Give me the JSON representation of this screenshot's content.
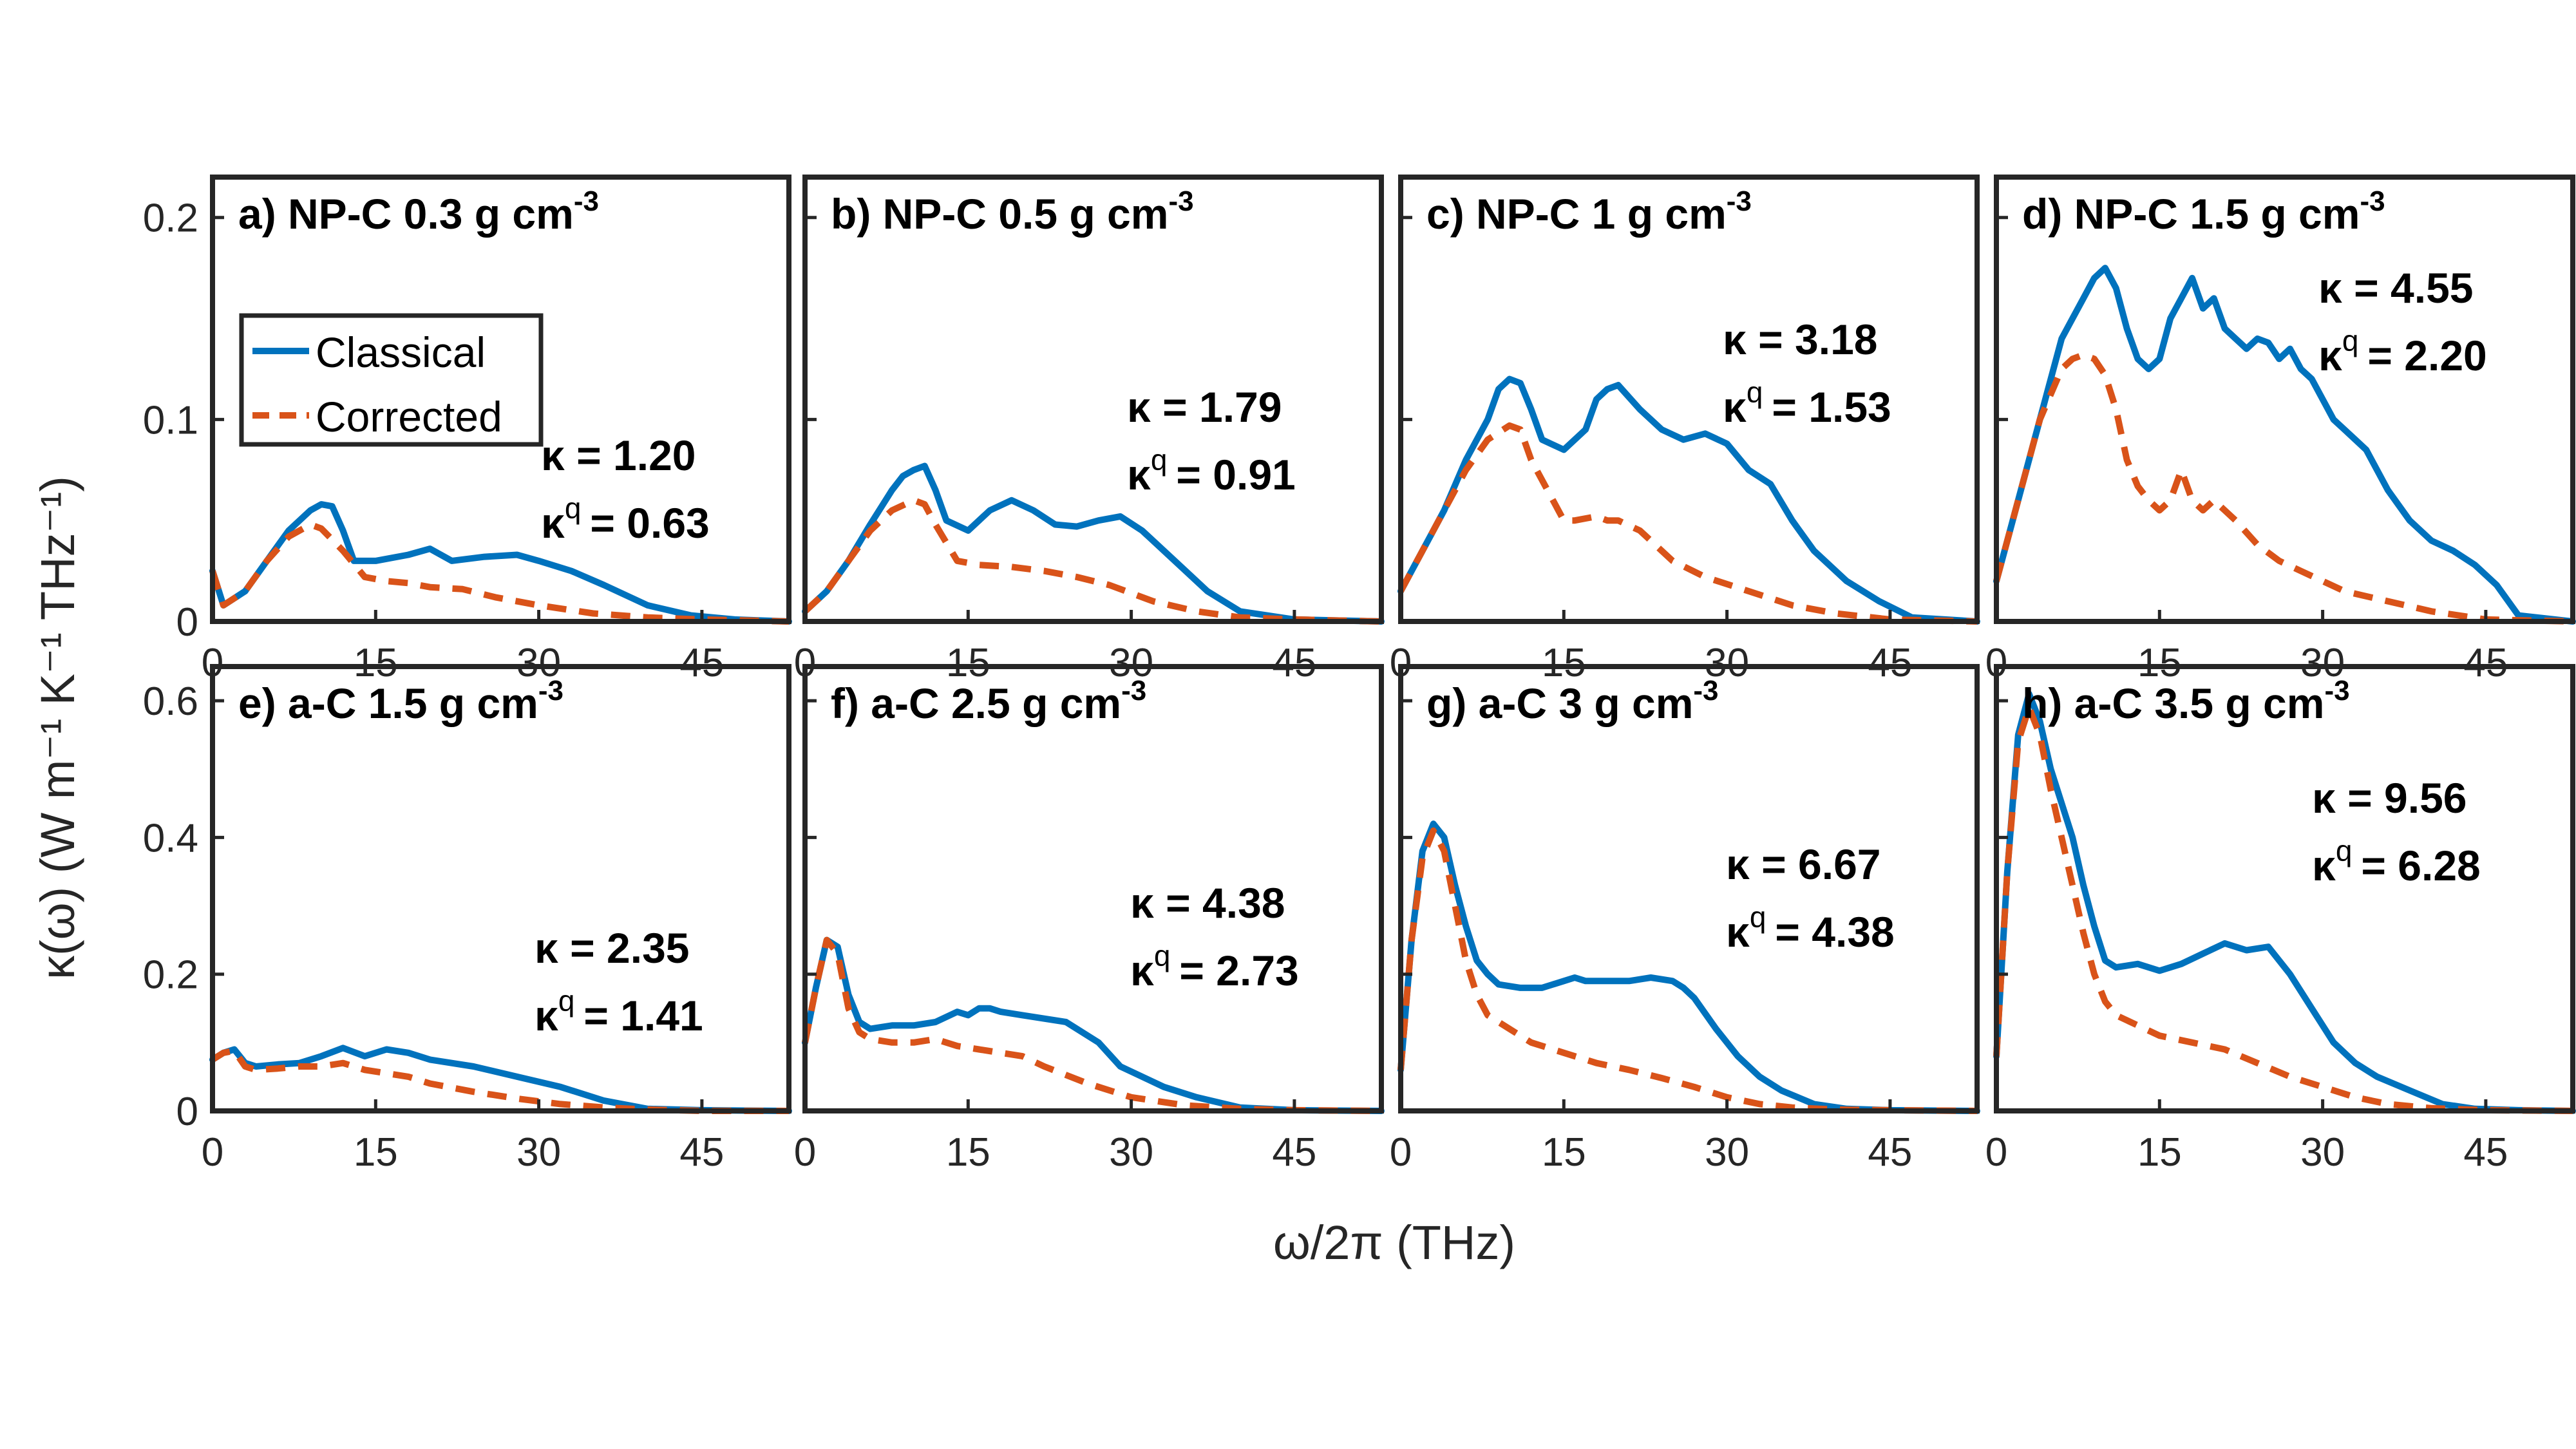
{
  "figure": {
    "ylabel": "κ(ω) (W m⁻¹ K⁻¹ THz⁻¹)",
    "xlabel": "ω/2π (THz)"
  },
  "legend": {
    "items": [
      {
        "label": "Classical",
        "color": "#0072BD",
        "style": "solid"
      },
      {
        "label": "Corrected",
        "color": "#D95319",
        "style": "dashed"
      }
    ],
    "placement": "panel a, upper-left"
  },
  "chart_data": [
    {
      "type": "line",
      "panel": "a",
      "label": "a) NP-C 0.3 g cm",
      "exponent": "-3",
      "kappa_label": "κ = 1.20",
      "kappaq_label": "κ",
      "kappaq_sup": "q",
      "kappaq_value": "= 0.63",
      "xlim": [
        0,
        53
      ],
      "ylim": [
        0,
        0.22
      ],
      "xticks": [
        "0",
        "15",
        "30",
        "45"
      ],
      "yticks": [
        "0",
        "0.1",
        "0.2"
      ],
      "ytick_values": [
        0,
        0.1,
        0.2
      ],
      "series": [
        {
          "name": "Classical",
          "x": [
            0,
            1,
            3,
            5,
            7,
            9,
            10,
            11,
            12,
            13,
            15,
            18,
            20,
            22,
            25,
            28,
            30,
            33,
            36,
            40,
            44,
            48,
            53
          ],
          "y": [
            0.025,
            0.008,
            0.015,
            0.03,
            0.045,
            0.055,
            0.058,
            0.057,
            0.045,
            0.03,
            0.03,
            0.033,
            0.036,
            0.03,
            0.032,
            0.033,
            0.03,
            0.025,
            0.018,
            0.008,
            0.003,
            0.001,
            0
          ]
        },
        {
          "name": "Corrected",
          "x": [
            0,
            1,
            3,
            5,
            7,
            9,
            10,
            12,
            14,
            16,
            18,
            20,
            23,
            26,
            30,
            35,
            40,
            45,
            53
          ],
          "y": [
            0.025,
            0.008,
            0.015,
            0.03,
            0.042,
            0.048,
            0.046,
            0.035,
            0.022,
            0.02,
            0.019,
            0.017,
            0.016,
            0.012,
            0.008,
            0.004,
            0.002,
            0.001,
            0
          ]
        }
      ]
    },
    {
      "type": "line",
      "panel": "b",
      "label": "b) NP-C 0.5 g cm",
      "exponent": "-3",
      "kappa_label": "κ = 1.79",
      "kappaq_label": "κ",
      "kappaq_sup": "q",
      "kappaq_value": "= 0.91",
      "xlim": [
        0,
        53
      ],
      "ylim": [
        0,
        0.22
      ],
      "xticks": [
        "0",
        "15",
        "30",
        "45"
      ],
      "yticks": [],
      "ytick_values": [
        0,
        0.1,
        0.2
      ],
      "series": [
        {
          "name": "Classical",
          "x": [
            0,
            2,
            4,
            6,
            8,
            9,
            10,
            11,
            12,
            13,
            15,
            17,
            19,
            21,
            23,
            25,
            27,
            29,
            31,
            34,
            37,
            40,
            45,
            53
          ],
          "y": [
            0.005,
            0.015,
            0.03,
            0.048,
            0.065,
            0.072,
            0.075,
            0.077,
            0.065,
            0.05,
            0.045,
            0.055,
            0.06,
            0.055,
            0.048,
            0.047,
            0.05,
            0.052,
            0.045,
            0.03,
            0.015,
            0.005,
            0.001,
            0
          ]
        },
        {
          "name": "Corrected",
          "x": [
            0,
            2,
            4,
            6,
            8,
            10,
            11,
            12,
            14,
            16,
            19,
            22,
            25,
            28,
            32,
            36,
            40,
            45,
            53
          ],
          "y": [
            0.005,
            0.015,
            0.03,
            0.045,
            0.055,
            0.06,
            0.058,
            0.048,
            0.03,
            0.028,
            0.027,
            0.025,
            0.022,
            0.018,
            0.01,
            0.005,
            0.002,
            0.001,
            0
          ]
        }
      ]
    },
    {
      "type": "line",
      "panel": "c",
      "label": "c) NP-C 1 g cm",
      "exponent": "-3",
      "kappa_label": "κ = 3.18",
      "kappaq_label": "κ",
      "kappaq_sup": "q",
      "kappaq_value": "= 1.53",
      "xlim": [
        0,
        53
      ],
      "ylim": [
        0,
        0.22
      ],
      "xticks": [
        "0",
        "15",
        "30",
        "45"
      ],
      "yticks": [],
      "ytick_values": [
        0,
        0.1,
        0.2
      ],
      "series": [
        {
          "name": "Classical",
          "x": [
            0,
            2,
            4,
            6,
            8,
            9,
            10,
            11,
            12,
            13,
            15,
            17,
            18,
            19,
            20,
            22,
            24,
            26,
            28,
            30,
            32,
            34,
            36,
            38,
            41,
            44,
            47,
            53
          ],
          "y": [
            0.015,
            0.035,
            0.055,
            0.08,
            0.1,
            0.115,
            0.12,
            0.118,
            0.105,
            0.09,
            0.085,
            0.095,
            0.11,
            0.115,
            0.117,
            0.105,
            0.095,
            0.09,
            0.093,
            0.088,
            0.075,
            0.068,
            0.05,
            0.035,
            0.02,
            0.01,
            0.002,
            0
          ]
        },
        {
          "name": "Corrected",
          "x": [
            0,
            2,
            4,
            6,
            8,
            10,
            11,
            12,
            14,
            15,
            16,
            18,
            19,
            20,
            22,
            25,
            28,
            32,
            36,
            40,
            45,
            53
          ],
          "y": [
            0.015,
            0.035,
            0.055,
            0.075,
            0.09,
            0.097,
            0.095,
            0.08,
            0.06,
            0.05,
            0.05,
            0.052,
            0.05,
            0.05,
            0.045,
            0.03,
            0.022,
            0.015,
            0.008,
            0.004,
            0.001,
            0
          ]
        }
      ]
    },
    {
      "type": "line",
      "panel": "d",
      "label": "d) NP-C 1.5 g cm",
      "exponent": "-3",
      "kappa_label": "κ = 4.55",
      "kappaq_label": "κ",
      "kappaq_sup": "q",
      "kappaq_value": "= 2.20",
      "xlim": [
        0,
        53
      ],
      "ylim": [
        0,
        0.22
      ],
      "xticks": [
        "0",
        "15",
        "30",
        "45"
      ],
      "yticks": [],
      "ytick_values": [
        0,
        0.1,
        0.2
      ],
      "series": [
        {
          "name": "Classical",
          "x": [
            0,
            2,
            4,
            6,
            7,
            8,
            9,
            10,
            11,
            12,
            13,
            14,
            15,
            16,
            17,
            18,
            19,
            20,
            21,
            22,
            23,
            24,
            25,
            26,
            27,
            28,
            29,
            30,
            31,
            32,
            33,
            34,
            36,
            38,
            40,
            42,
            44,
            46,
            48,
            53
          ],
          "y": [
            0.02,
            0.06,
            0.1,
            0.14,
            0.15,
            0.16,
            0.17,
            0.175,
            0.165,
            0.145,
            0.13,
            0.125,
            0.13,
            0.15,
            0.16,
            0.17,
            0.155,
            0.16,
            0.145,
            0.14,
            0.135,
            0.14,
            0.138,
            0.13,
            0.135,
            0.125,
            0.12,
            0.11,
            0.1,
            0.095,
            0.09,
            0.085,
            0.065,
            0.05,
            0.04,
            0.035,
            0.028,
            0.018,
            0.003,
            0
          ]
        },
        {
          "name": "Corrected",
          "x": [
            0,
            2,
            4,
            6,
            7,
            8,
            9,
            10,
            11,
            12,
            13,
            14,
            15,
            16,
            17,
            18,
            19,
            20,
            21,
            22,
            24,
            26,
            28,
            30,
            32,
            36,
            40,
            45,
            53
          ],
          "y": [
            0.02,
            0.06,
            0.1,
            0.125,
            0.13,
            0.132,
            0.13,
            0.122,
            0.105,
            0.08,
            0.067,
            0.06,
            0.055,
            0.06,
            0.075,
            0.06,
            0.055,
            0.06,
            0.055,
            0.05,
            0.038,
            0.03,
            0.025,
            0.02,
            0.015,
            0.01,
            0.005,
            0.001,
            0
          ]
        }
      ]
    },
    {
      "type": "line",
      "panel": "e",
      "label": "e) a-C 1.5 g cm",
      "exponent": "-3",
      "kappa_label": "κ = 2.35",
      "kappaq_label": "κ",
      "kappaq_sup": "q",
      "kappaq_value": "= 1.41",
      "xlim": [
        0,
        53
      ],
      "ylim": [
        0,
        0.65
      ],
      "xticks": [
        "0",
        "15",
        "30",
        "45"
      ],
      "yticks": [
        "0",
        "0.2",
        "0.4",
        "0.6"
      ],
      "ytick_values": [
        0,
        0.2,
        0.4,
        0.6
      ],
      "series": [
        {
          "name": "Classical",
          "x": [
            0,
            1,
            2,
            3,
            4,
            6,
            8,
            10,
            12,
            14,
            16,
            18,
            20,
            24,
            28,
            32,
            36,
            40,
            45,
            53
          ],
          "y": [
            0.075,
            0.085,
            0.09,
            0.07,
            0.065,
            0.068,
            0.07,
            0.08,
            0.092,
            0.08,
            0.09,
            0.085,
            0.075,
            0.065,
            0.05,
            0.035,
            0.015,
            0.003,
            0.001,
            0
          ]
        },
        {
          "name": "Corrected",
          "x": [
            0,
            1,
            2,
            3,
            4,
            6,
            8,
            10,
            12,
            14,
            16,
            18,
            20,
            24,
            28,
            32,
            36,
            40,
            45,
            53
          ],
          "y": [
            0.075,
            0.085,
            0.088,
            0.065,
            0.06,
            0.062,
            0.065,
            0.065,
            0.07,
            0.06,
            0.055,
            0.05,
            0.04,
            0.028,
            0.018,
            0.01,
            0.005,
            0.002,
            0,
            0
          ]
        }
      ]
    },
    {
      "type": "line",
      "panel": "f",
      "label": "f) a-C 2.5 g cm",
      "exponent": "-3",
      "kappa_label": "κ = 4.38",
      "kappaq_label": "κ",
      "kappaq_sup": "q",
      "kappaq_value": "= 2.73",
      "xlim": [
        0,
        53
      ],
      "ylim": [
        0,
        0.65
      ],
      "xticks": [
        "0",
        "15",
        "30",
        "45"
      ],
      "yticks": [],
      "ytick_values": [
        0,
        0.2,
        0.4,
        0.6
      ],
      "series": [
        {
          "name": "Classical",
          "x": [
            0,
            1,
            2,
            3,
            4,
            5,
            6,
            8,
            10,
            12,
            14,
            15,
            16,
            17,
            18,
            20,
            24,
            27,
            29,
            31,
            33,
            36,
            40,
            45,
            53
          ],
          "y": [
            0.1,
            0.18,
            0.25,
            0.24,
            0.17,
            0.13,
            0.12,
            0.125,
            0.125,
            0.13,
            0.145,
            0.14,
            0.15,
            0.15,
            0.145,
            0.14,
            0.13,
            0.1,
            0.065,
            0.05,
            0.035,
            0.02,
            0.005,
            0.001,
            0
          ]
        },
        {
          "name": "Corrected",
          "x": [
            0,
            1,
            2,
            3,
            4,
            5,
            6,
            8,
            10,
            12,
            14,
            16,
            18,
            20,
            22,
            26,
            30,
            35,
            40,
            45,
            53
          ],
          "y": [
            0.1,
            0.18,
            0.25,
            0.23,
            0.15,
            0.115,
            0.105,
            0.1,
            0.1,
            0.105,
            0.095,
            0.09,
            0.085,
            0.08,
            0.065,
            0.04,
            0.02,
            0.008,
            0.003,
            0.001,
            0
          ]
        }
      ]
    },
    {
      "type": "line",
      "panel": "g",
      "label": "g) a-C 3 g cm",
      "exponent": "-3",
      "kappa_label": "κ = 6.67",
      "kappaq_label": "κ",
      "kappaq_sup": "q",
      "kappaq_value": "= 4.38",
      "xlim": [
        0,
        53
      ],
      "ylim": [
        0,
        0.65
      ],
      "xticks": [
        "0",
        "15",
        "30",
        "45"
      ],
      "yticks": [],
      "ytick_values": [
        0,
        0.2,
        0.4,
        0.6
      ],
      "series": [
        {
          "name": "Classical",
          "x": [
            0,
            1,
            2,
            3,
            4,
            5,
            6,
            7,
            8,
            9,
            11,
            13,
            15,
            16,
            17,
            19,
            21,
            23,
            25,
            26,
            27,
            29,
            31,
            33,
            35,
            38,
            41,
            45,
            53
          ],
          "y": [
            0.06,
            0.25,
            0.38,
            0.42,
            0.4,
            0.33,
            0.27,
            0.22,
            0.2,
            0.185,
            0.18,
            0.18,
            0.19,
            0.195,
            0.19,
            0.19,
            0.19,
            0.195,
            0.19,
            0.18,
            0.165,
            0.12,
            0.08,
            0.05,
            0.03,
            0.01,
            0.003,
            0.001,
            0
          ]
        },
        {
          "name": "Corrected",
          "x": [
            0,
            1,
            2,
            3,
            4,
            5,
            6,
            7,
            8,
            10,
            12,
            15,
            18,
            21,
            24,
            27,
            30,
            33,
            36,
            40,
            45,
            53
          ],
          "y": [
            0.06,
            0.25,
            0.37,
            0.41,
            0.38,
            0.3,
            0.22,
            0.17,
            0.14,
            0.12,
            0.1,
            0.085,
            0.07,
            0.06,
            0.048,
            0.035,
            0.02,
            0.01,
            0.005,
            0.002,
            0.001,
            0
          ]
        }
      ]
    },
    {
      "type": "line",
      "panel": "h",
      "label": "h) a-C 3.5 g cm",
      "exponent": "-3",
      "kappa_label": "κ = 9.56",
      "kappaq_label": "κ",
      "kappaq_sup": "q",
      "kappaq_value": "= 6.28",
      "xlim": [
        0,
        53
      ],
      "ylim": [
        0,
        0.65
      ],
      "xticks": [
        "0",
        "15",
        "30",
        "45"
      ],
      "yticks": [],
      "ytick_values": [
        0,
        0.2,
        0.4,
        0.6
      ],
      "series": [
        {
          "name": "Classical",
          "x": [
            0,
            1,
            2,
            3,
            4,
            5,
            6,
            7,
            8,
            9,
            10,
            11,
            13,
            15,
            17,
            19,
            21,
            23,
            25,
            27,
            29,
            31,
            33,
            35,
            38,
            41,
            44,
            48,
            53
          ],
          "y": [
            0.08,
            0.35,
            0.55,
            0.61,
            0.57,
            0.5,
            0.45,
            0.4,
            0.33,
            0.27,
            0.22,
            0.21,
            0.215,
            0.205,
            0.215,
            0.23,
            0.245,
            0.235,
            0.24,
            0.2,
            0.15,
            0.1,
            0.07,
            0.05,
            0.03,
            0.01,
            0.003,
            0.001,
            0
          ]
        },
        {
          "name": "Corrected",
          "x": [
            0,
            1,
            2,
            3,
            4,
            5,
            6,
            7,
            8,
            9,
            10,
            11,
            13,
            15,
            18,
            21,
            24,
            27,
            30,
            33,
            36,
            40,
            45,
            53
          ],
          "y": [
            0.08,
            0.35,
            0.54,
            0.59,
            0.55,
            0.47,
            0.4,
            0.33,
            0.26,
            0.2,
            0.16,
            0.14,
            0.125,
            0.11,
            0.1,
            0.09,
            0.07,
            0.05,
            0.035,
            0.02,
            0.01,
            0.004,
            0.001,
            0
          ]
        }
      ]
    }
  ]
}
